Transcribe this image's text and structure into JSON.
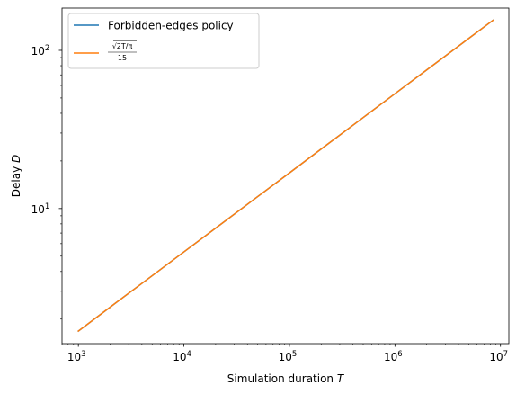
{
  "chart_data": {
    "type": "line",
    "xscale": "log",
    "yscale": "log",
    "xlim": [
      700,
      12000000
    ],
    "ylim": [
      1.4,
      185
    ],
    "x_ticks": [
      {
        "base": "10",
        "exp": "3",
        "value": 1000
      },
      {
        "base": "10",
        "exp": "4",
        "value": 10000
      },
      {
        "base": "10",
        "exp": "5",
        "value": 100000
      },
      {
        "base": "10",
        "exp": "6",
        "value": 1000000
      },
      {
        "base": "10",
        "exp": "7",
        "value": 10000000
      }
    ],
    "y_ticks": [
      {
        "base": "10",
        "exp": "1",
        "value": 10
      },
      {
        "base": "10",
        "exp": "2",
        "value": 100
      }
    ],
    "xlabel": {
      "text": "Simulation duration ",
      "var": "T"
    },
    "ylabel": {
      "text": "Delay ",
      "var": "D"
    },
    "grid": false,
    "legend_position": "upper-left",
    "series": [
      {
        "name": "Forbidden-edges policy",
        "color": "#1f77b4",
        "x": [
          1000,
          2000,
          5000,
          10000,
          20000,
          50000,
          100000,
          200000,
          500000,
          1000000,
          2000000,
          5000000,
          8500000
        ],
        "y": [
          1.68,
          2.38,
          3.76,
          5.32,
          7.52,
          11.9,
          16.8,
          23.8,
          37.6,
          53.2,
          75.2,
          118.9,
          155
        ]
      },
      {
        "name": "√(2T/π) / 15",
        "legend_latex": {
          "numerator": "√2T/π",
          "denominator": "15"
        },
        "color": "#ff7f0e",
        "x": [
          1000,
          2000,
          5000,
          10000,
          20000,
          50000,
          100000,
          200000,
          500000,
          1000000,
          2000000,
          5000000,
          8500000
        ],
        "y": [
          1.68,
          2.38,
          3.76,
          5.32,
          7.52,
          11.9,
          16.8,
          23.8,
          37.6,
          53.2,
          75.2,
          118.9,
          155
        ]
      }
    ]
  }
}
